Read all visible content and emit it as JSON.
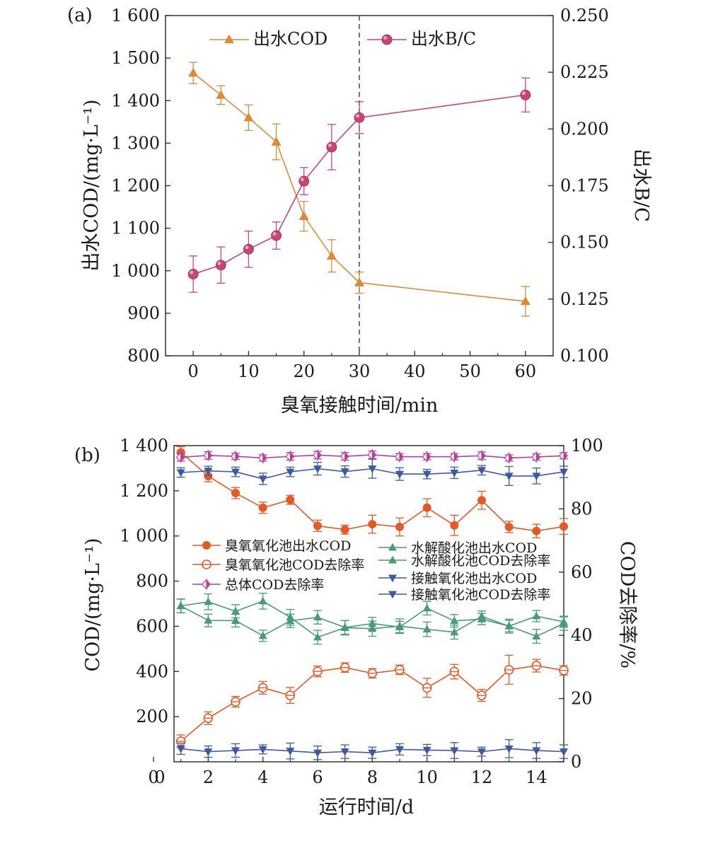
{
  "chart_data": [
    {
      "panel_label": "(a)",
      "type": "line",
      "xlabel": "臭氧接触时间/min",
      "ylabel_left": "出水COD/(mg·L⁻¹)",
      "ylabel_right": "出水B/C",
      "x_ticks": [
        "0",
        "10",
        "20",
        "30",
        "40",
        "50",
        "60"
      ],
      "y_left_ticks": [
        "800",
        "900",
        "1 000",
        "1 100",
        "1 200",
        "1 300",
        "1 400",
        "1 500",
        "1 600"
      ],
      "y_right_ticks": [
        "0.100",
        "0.125",
        "0.150",
        "0.175",
        "0.200",
        "0.225",
        "0.250"
      ],
      "xlim": [
        -5,
        65
      ],
      "ylim_left": [
        800,
        1600
      ],
      "ylim_right": [
        0.1,
        0.25
      ],
      "vline_x": 30,
      "series": [
        {
          "name": "出水COD",
          "axis": "left",
          "color": "#d98b3a",
          "marker": "triangle-up",
          "x": [
            0,
            5,
            10,
            15,
            20,
            25,
            30,
            60
          ],
          "y": [
            1465,
            1413,
            1360,
            1303,
            1128,
            1035,
            972,
            928
          ],
          "err": [
            25,
            22,
            30,
            42,
            35,
            38,
            25,
            35
          ]
        },
        {
          "name": "出水B/C",
          "axis": "right",
          "color": "#c8457a",
          "marker": "circle",
          "x": [
            0,
            5,
            10,
            15,
            20,
            25,
            30,
            60
          ],
          "y": [
            0.136,
            0.14,
            0.147,
            0.153,
            0.177,
            0.192,
            0.205,
            0.215
          ],
          "err": [
            0.008,
            0.008,
            0.008,
            0.006,
            0.006,
            0.01,
            0.007,
            0.0075
          ]
        }
      ]
    },
    {
      "panel_label": "(b)",
      "type": "line",
      "xlabel": "运行时间/d",
      "ylabel_left": "COD/(mg·L⁻¹)",
      "ylabel_right": "COD去除率/%",
      "x_ticks": [
        "0",
        "2",
        "4",
        "6",
        "8",
        "10",
        "12",
        "14"
      ],
      "y_left_ticks": [
        "200",
        "400",
        "600",
        "800",
        "1 000",
        "1 200",
        "1 400"
      ],
      "y_right_ticks": [
        "0",
        "20",
        "40",
        "60",
        "80",
        "100"
      ],
      "xlim": [
        0.75,
        15
      ],
      "ylim_left": [
        0,
        1400
      ],
      "ylim_right": [
        0,
        100
      ],
      "series": [
        {
          "name": "臭氧氧化池出水COD",
          "axis": "left",
          "color": "#e05a2a",
          "marker": "circle-filled",
          "x": [
            1,
            2,
            3,
            4,
            5,
            6,
            7,
            8,
            9,
            10,
            11,
            12,
            13,
            14,
            15
          ],
          "y": [
            1370,
            1265,
            1190,
            1125,
            1160,
            1045,
            1028,
            1052,
            1040,
            1125,
            1047,
            1158,
            1040,
            1022,
            1042
          ],
          "err": [
            25,
            25,
            25,
            25,
            20,
            25,
            20,
            40,
            40,
            40,
            45,
            40,
            25,
            30,
            35
          ]
        },
        {
          "name": "臭氧氧化池COD去除率",
          "axis": "right",
          "color": "#e05a2a",
          "marker": "circle-open",
          "x": [
            1,
            2,
            3,
            4,
            5,
            6,
            7,
            8,
            9,
            10,
            11,
            12,
            13,
            14,
            15
          ],
          "y": [
            6.5,
            13.8,
            19,
            23.4,
            21,
            28.6,
            29.8,
            28,
            29.1,
            23.4,
            28.5,
            21,
            29.1,
            30.4,
            28.9
          ],
          "err": [
            2,
            2,
            1.7,
            2,
            2.5,
            1.7,
            1.5,
            1.5,
            1.5,
            3,
            2.3,
            1.9,
            4.6,
            2,
            1.5
          ]
        },
        {
          "name": "总体COD去除率",
          "axis": "right",
          "color": "#b6409c",
          "marker": "diamond",
          "x": [
            1,
            2,
            3,
            4,
            5,
            6,
            7,
            8,
            9,
            10,
            11,
            12,
            13,
            14,
            15
          ],
          "y": [
            96.3,
            96.9,
            96.6,
            96.1,
            96.6,
            97.0,
            96.6,
            97.1,
            96.5,
            96.5,
            96.5,
            96.8,
            96.1,
            96.4,
            96.8
          ],
          "err": [
            1.2,
            1.2,
            1,
            1,
            1.2,
            1.2,
            1.2,
            1.2,
            1,
            1,
            1,
            1.2,
            1,
            1,
            1
          ]
        },
        {
          "name": "水解酸化池出水COD",
          "axis": "left",
          "color": "#4a9a78",
          "marker": "triangle-up",
          "x": [
            1,
            2,
            3,
            4,
            5,
            6,
            7,
            8,
            9,
            10,
            11,
            12,
            13,
            14,
            15
          ],
          "y": [
            690,
            626,
            625,
            558,
            624,
            640,
            595,
            612,
            597,
            680,
            624,
            632,
            601,
            645,
            620
          ],
          "err": [
            30,
            28,
            28,
            25,
            30,
            30,
            30,
            28,
            25,
            30,
            28,
            25,
            25,
            25,
            25
          ]
        },
        {
          "name": "水解酸化池COD去除率",
          "axis": "right",
          "color": "#4a9a78",
          "marker": "triangle-up",
          "x": [
            1,
            2,
            3,
            4,
            5,
            6,
            7,
            8,
            9,
            10,
            11,
            12,
            13,
            14,
            15
          ],
          "y": [
            49.3,
            50.6,
            47.6,
            50.8,
            45.7,
            39.4,
            42.4,
            42.1,
            42.9,
            41.9,
            41.0,
            46.0,
            42.9,
            39.7,
            43.7
          ],
          "err": [
            2.2,
            2.5,
            2.1,
            2.5,
            2.5,
            2.2,
            2.3,
            2.4,
            2.3,
            2.3,
            2.2,
            1.7,
            2.2,
            2.2,
            2.1
          ]
        },
        {
          "name": "接触氧化池出水COD",
          "axis": "left",
          "color": "#3d5a9e",
          "marker": "triangle-down",
          "x": [
            1,
            2,
            3,
            4,
            5,
            6,
            7,
            8,
            9,
            10,
            11,
            12,
            13,
            14,
            15
          ],
          "y": [
            58,
            45,
            50,
            55,
            48,
            40,
            45,
            40,
            55,
            52,
            50,
            45,
            58,
            50,
            45
          ],
          "err": [
            25,
            25,
            30,
            20,
            35,
            30,
            30,
            25,
            25,
            25,
            35,
            20,
            40,
            35,
            30
          ]
        },
        {
          "name": "接触氧化池COD去除率",
          "axis": "right",
          "color": "#3d5a9e",
          "marker": "triangle-down",
          "x": [
            1,
            2,
            3,
            4,
            5,
            6,
            7,
            8,
            9,
            10,
            11,
            12,
            13,
            14,
            15
          ],
          "y": [
            91.5,
            92.0,
            91.7,
            89.5,
            91.7,
            92.7,
            91.8,
            92.7,
            91.0,
            91.0,
            91.4,
            92.2,
            90.4,
            90.4,
            91.7
          ],
          "err": [
            1.5,
            1.5,
            1.5,
            1.8,
            1.5,
            2,
            1.8,
            3,
            2,
            1.5,
            1.8,
            1.5,
            3,
            2.5,
            1.8
          ]
        }
      ]
    }
  ]
}
